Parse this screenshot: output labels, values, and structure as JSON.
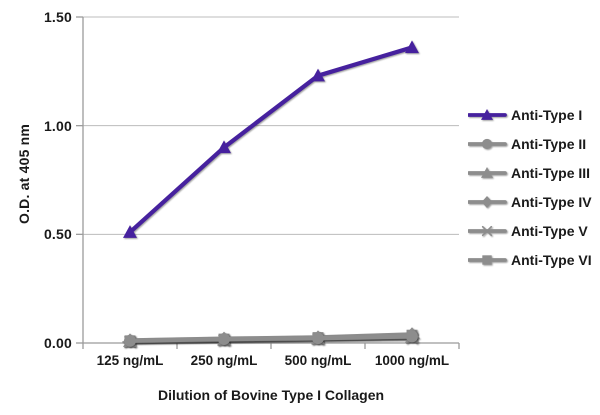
{
  "chart_data": {
    "type": "line",
    "title": "",
    "xlabel": "Dilution of Bovine Type I Collagen",
    "ylabel": "O.D. at 405 nm",
    "categories": [
      "125 ng/mL",
      "250 ng/mL",
      "500 ng/mL",
      "1000 ng/mL"
    ],
    "ylim": [
      0,
      1.5
    ],
    "yticks": [
      0,
      0.5,
      1,
      1.5
    ],
    "ytick_labels": [
      "0.00",
      "0.50",
      "1.00",
      "1.50"
    ],
    "grid": "horizontal",
    "legend_position": "right",
    "grid_color": "#bcbcbc",
    "axis_color": "#9b9b9b",
    "text_color": "#1a1a1a",
    "series": [
      {
        "name": "Anti-Type I",
        "color": "#46219e",
        "marker": "triangle",
        "values": [
          0.51,
          0.9,
          1.23,
          1.36
        ]
      },
      {
        "name": "Anti-Type II",
        "color": "#8d8d8d",
        "marker": "circle",
        "values": [
          0.01,
          0.018,
          0.022,
          0.03
        ]
      },
      {
        "name": "Anti-Type III",
        "color": "#8d8d8d",
        "marker": "triangle",
        "values": [
          0.008,
          0.015,
          0.02,
          0.028
        ]
      },
      {
        "name": "Anti-Type IV",
        "color": "#8d8d8d",
        "marker": "diamond",
        "values": [
          0.012,
          0.02,
          0.026,
          0.04
        ]
      },
      {
        "name": "Anti-Type V",
        "color": "#8d8d8d",
        "marker": "asterisk",
        "values": [
          0.005,
          0.012,
          0.018,
          0.022
        ]
      },
      {
        "name": "Anti-Type VI",
        "color": "#8d8d8d",
        "marker": "square",
        "values": [
          0.01,
          0.018,
          0.025,
          0.036
        ]
      }
    ]
  }
}
